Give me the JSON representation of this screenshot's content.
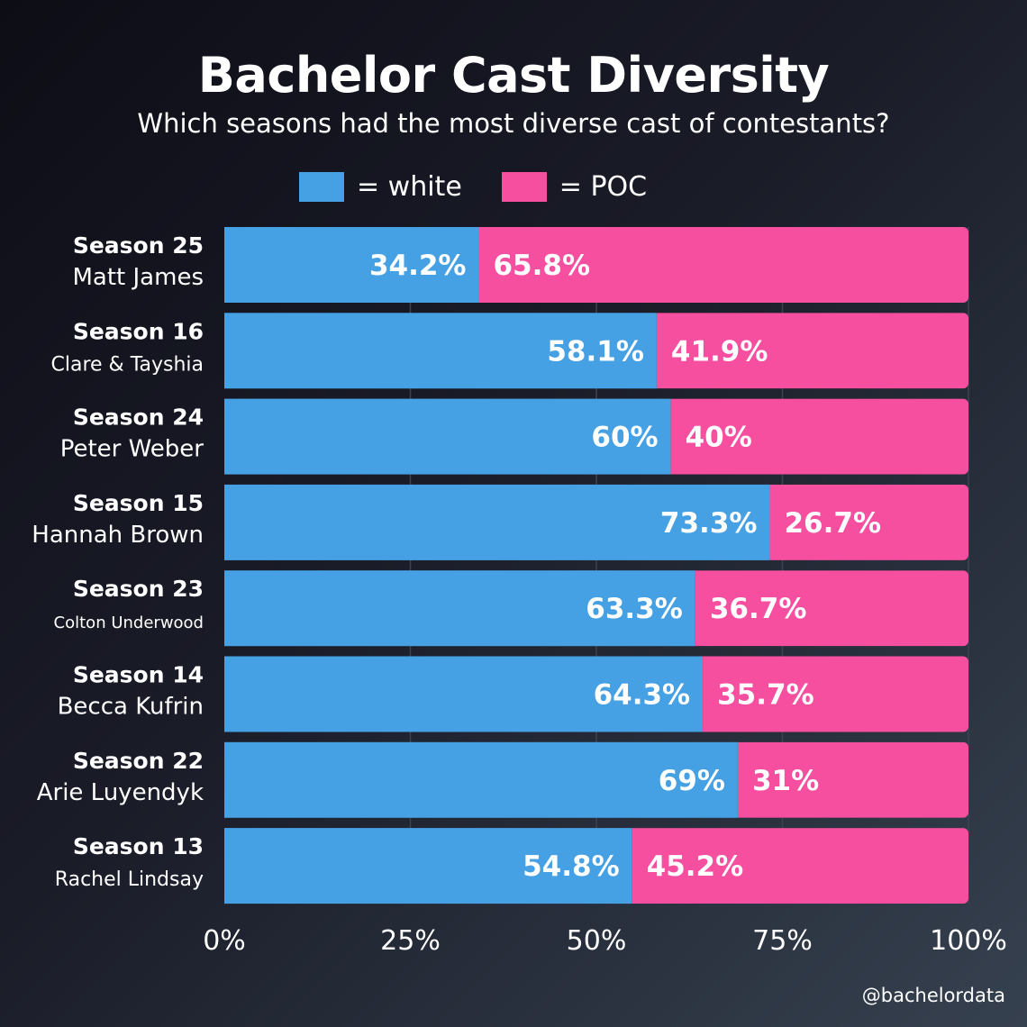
{
  "header": {
    "title": "Bachelor Cast Diversity",
    "subtitle": "Which seasons had the most diverse cast of contestants?"
  },
  "credit": "@bachelordata",
  "chart_data": {
    "type": "bar",
    "stacked": true,
    "orientation": "horizontal",
    "title": "Bachelor Cast Diversity",
    "subtitle": "Which seasons had the most diverse cast of contestants?",
    "categories": [
      {
        "season": "Season 25",
        "lead": "Matt James"
      },
      {
        "season": "Season 16",
        "lead": "Clare & Tayshia"
      },
      {
        "season": "Season 24",
        "lead": "Peter Weber"
      },
      {
        "season": "Season 15",
        "lead": "Hannah Brown"
      },
      {
        "season": "Season 23",
        "lead": "Colton Underwood"
      },
      {
        "season": "Season 14",
        "lead": "Becca Kufrin"
      },
      {
        "season": "Season 22",
        "lead": "Arie Luyendyk"
      },
      {
        "season": "Season 13",
        "lead": "Rachel Lindsay"
      }
    ],
    "series": [
      {
        "name": "= white",
        "color": "#46a0e4",
        "values": [
          34.2,
          58.1,
          60,
          73.3,
          63.3,
          64.3,
          69,
          54.8
        ],
        "labels": [
          "34.2%",
          "58.1%",
          "60%",
          "73.3%",
          "63.3%",
          "64.3%",
          "69%",
          "54.8%"
        ]
      },
      {
        "name": "= POC",
        "color": "#f74fa0",
        "values": [
          65.8,
          41.9,
          40,
          26.7,
          36.7,
          35.7,
          31,
          45.2
        ],
        "labels": [
          "65.8%",
          "41.9%",
          "40%",
          "26.7%",
          "36.7%",
          "35.7%",
          "31%",
          "45.2%"
        ]
      }
    ],
    "xlim": [
      0,
      100
    ],
    "xticks": [
      "0%",
      "25%",
      "50%",
      "75%",
      "100%"
    ],
    "grid": true,
    "legend": "top"
  }
}
